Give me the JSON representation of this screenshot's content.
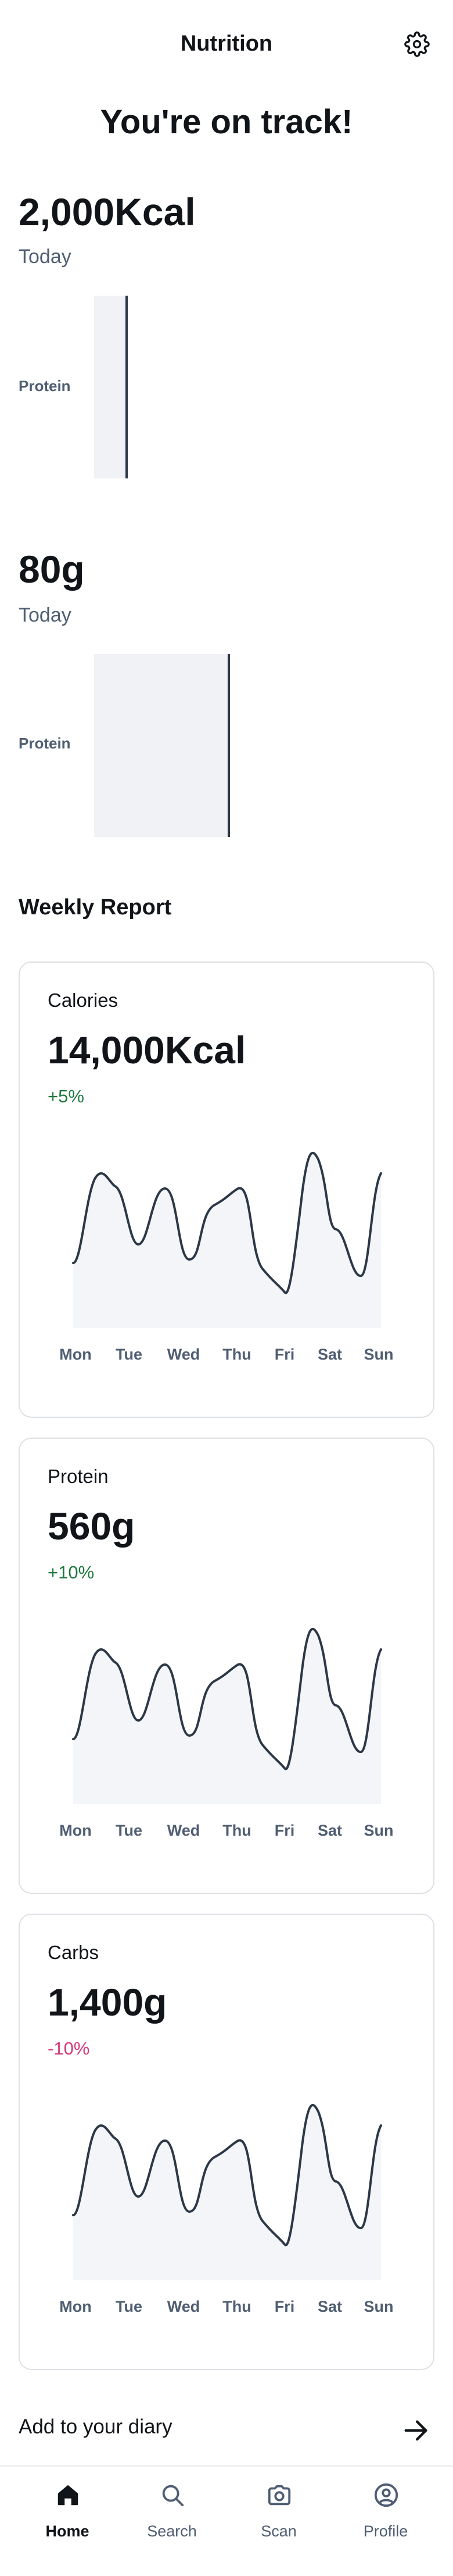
{
  "header": {
    "title": "Nutrition",
    "settings_icon": "gear-icon"
  },
  "headline": "You're on track!",
  "calories_today": {
    "value": "2,000Kcal",
    "period": "Today",
    "bar_label": "Protein",
    "bar_fill": 0.98
  },
  "protein_today": {
    "value": "80g",
    "period": "Today",
    "bar_label": "Protein",
    "bar_fill": 0.98
  },
  "weekly": {
    "title": "Weekly Report",
    "days": [
      "Mon",
      "Tue",
      "Wed",
      "Thu",
      "Fri",
      "Sat",
      "Sun"
    ],
    "cards": [
      {
        "label": "Calories",
        "value": "14,000Kcal",
        "change": "+5%",
        "trend": "up"
      },
      {
        "label": "Protein",
        "value": "560g",
        "change": "+10%",
        "trend": "up"
      },
      {
        "label": "Carbs",
        "value": "1,400g",
        "change": "-10%",
        "trend": "down"
      }
    ]
  },
  "diary": {
    "label": "Add to your diary",
    "icon": "arrow-right-icon"
  },
  "nav": {
    "items": [
      {
        "label": "Home",
        "icon": "home-icon",
        "active": true
      },
      {
        "label": "Search",
        "icon": "search-icon",
        "active": false
      },
      {
        "label": "Scan",
        "icon": "camera-icon",
        "active": false
      },
      {
        "label": "Profile",
        "icon": "profile-icon",
        "active": false
      }
    ]
  },
  "colors": {
    "accent_up": "#1f7a3f",
    "accent_down": "#d6367a",
    "line": "#2c3847",
    "text_muted": "#4f5d72"
  }
}
